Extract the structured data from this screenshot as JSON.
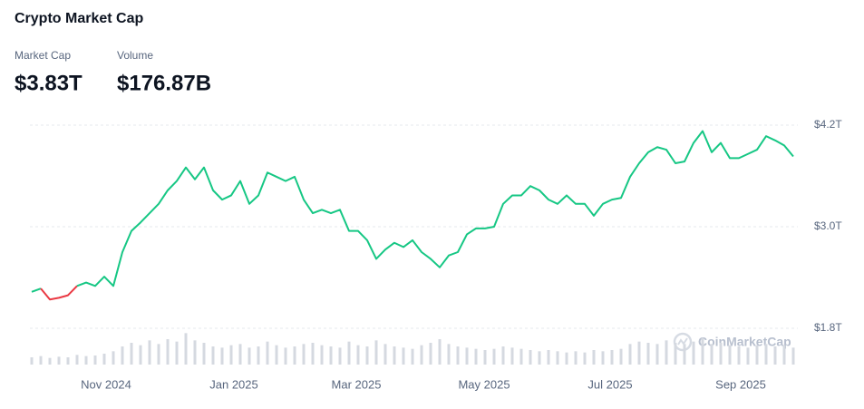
{
  "chart_data": {
    "type": "line",
    "title": "Crypto Market Cap",
    "stats": [
      {
        "label": "Market Cap",
        "value": "$3.83T"
      },
      {
        "label": "Volume",
        "value": "$176.87B"
      }
    ],
    "watermark": "CoinMarketCap",
    "color_up": "#16c784",
    "color_down": "#ea3943",
    "volume_color": "#d5d9e0",
    "grid": true,
    "xlim": [
      0,
      84
    ],
    "xticks": [
      {
        "value": 8.2,
        "label": "Nov 2024"
      },
      {
        "value": 22.3,
        "label": "Jan 2025"
      },
      {
        "value": 35.8,
        "label": "Mar 2025"
      },
      {
        "value": 49.9,
        "label": "May 2025"
      },
      {
        "value": 63.8,
        "label": "Jul 2025"
      },
      {
        "value": 78.2,
        "label": "Sep 2025"
      }
    ],
    "ylim": [
      1.4,
      4.3
    ],
    "yticks": [
      {
        "value": 1.8,
        "label": "$1.8T"
      },
      {
        "value": 3.0,
        "label": "$3.0T"
      },
      {
        "value": 4.2,
        "label": "$4.2T"
      }
    ],
    "vlim": [
      0,
      300
    ],
    "series": [
      {
        "name": "Market Cap",
        "values": [
          2.23,
          2.27,
          2.14,
          2.16,
          2.19,
          2.3,
          2.34,
          2.3,
          2.41,
          2.3,
          2.7,
          2.95,
          3.05,
          3.16,
          3.27,
          3.43,
          3.54,
          3.7,
          3.56,
          3.7,
          3.43,
          3.32,
          3.37,
          3.54,
          3.27,
          3.37,
          3.64,
          3.59,
          3.54,
          3.59,
          3.32,
          3.16,
          3.2,
          3.16,
          3.2,
          2.95,
          2.95,
          2.84,
          2.62,
          2.73,
          2.81,
          2.76,
          2.84,
          2.7,
          2.62,
          2.52,
          2.66,
          2.7,
          2.91,
          2.98,
          2.98,
          3.0,
          3.27,
          3.37,
          3.37,
          3.48,
          3.43,
          3.32,
          3.27,
          3.37,
          3.27,
          3.27,
          3.13,
          3.27,
          3.32,
          3.34,
          3.59,
          3.75,
          3.88,
          3.94,
          3.91,
          3.75,
          3.77,
          3.99,
          4.13,
          3.88,
          3.99,
          3.81,
          3.81,
          3.86,
          3.91,
          4.07,
          4.02,
          3.96,
          3.83
        ]
      },
      {
        "name": "Volume",
        "values": [
          60,
          70,
          55,
          65,
          60,
          80,
          70,
          75,
          90,
          110,
          150,
          180,
          160,
          200,
          170,
          210,
          190,
          260,
          200,
          180,
          150,
          140,
          160,
          170,
          140,
          150,
          190,
          160,
          140,
          150,
          170,
          180,
          160,
          150,
          140,
          190,
          160,
          150,
          200,
          170,
          150,
          140,
          130,
          160,
          180,
          210,
          170,
          150,
          140,
          130,
          120,
          130,
          150,
          140,
          130,
          120,
          110,
          120,
          110,
          100,
          110,
          100,
          120,
          110,
          120,
          130,
          170,
          190,
          180,
          170,
          200,
          180,
          170,
          190,
          220,
          170,
          180,
          160,
          150,
          140,
          160,
          170,
          150,
          160,
          140
        ]
      }
    ]
  }
}
